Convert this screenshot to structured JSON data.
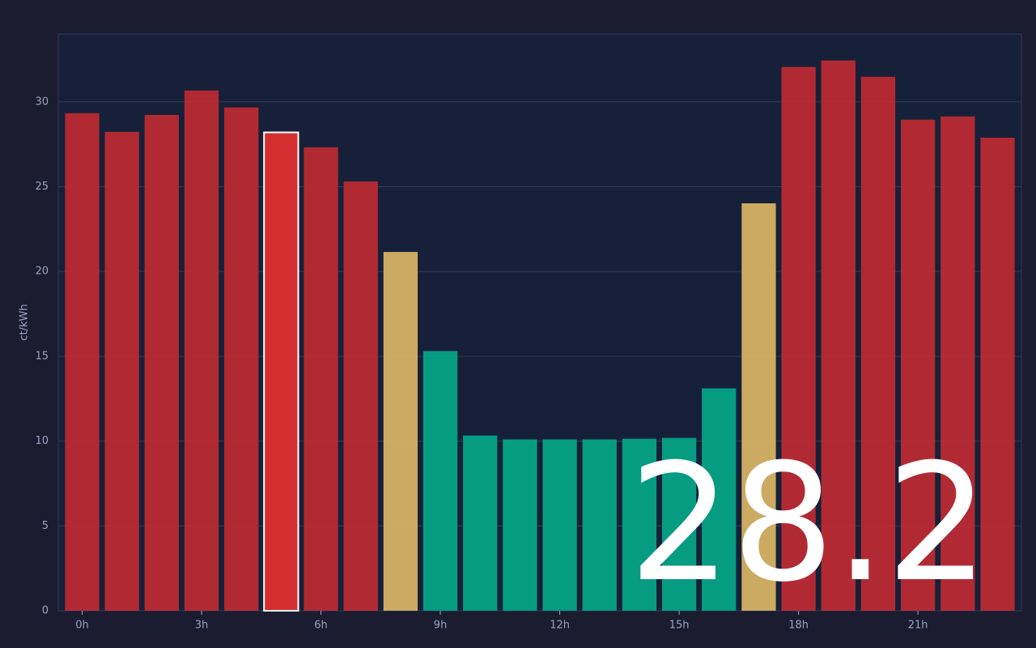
{
  "chart_data": {
    "type": "bar",
    "y_label": "ct/kWh",
    "x": [
      0,
      1,
      2,
      3,
      4,
      5,
      6,
      7,
      8,
      9,
      10,
      11,
      12,
      13,
      14,
      15,
      16,
      17,
      18,
      19,
      20,
      21,
      22,
      23
    ],
    "values": [
      29.33,
      28.23,
      29.23,
      30.67,
      29.67,
      28.2,
      27.32,
      25.31,
      21.15,
      15.31,
      10.33,
      10.1,
      10.1,
      10.1,
      10.14,
      10.19,
      13.11,
      24.02,
      32.06,
      32.44,
      31.48,
      28.95,
      29.14,
      27.89
    ],
    "colors": [
      "#b92b33",
      "#b92b33",
      "#b92b33",
      "#b92b33",
      "#b92b33",
      "#d32f2f",
      "#b92b33",
      "#b92b33",
      "#d6b264",
      "#05a386",
      "#05a386",
      "#05a386",
      "#05a386",
      "#05a386",
      "#05a386",
      "#05a386",
      "#05a386",
      "#d6b264",
      "#b92b33",
      "#b92b33",
      "#b92b33",
      "#b92b33",
      "#b92b33",
      "#b92b33"
    ],
    "highlight_index": 5,
    "current_value": 28.2,
    "xlim": [
      -0.6,
      23.6
    ],
    "ylim": [
      0,
      34
    ],
    "xticks": [
      {
        "value": 0,
        "label": "0h"
      },
      {
        "value": 3,
        "label": "3h"
      },
      {
        "value": 6,
        "label": "6h"
      },
      {
        "value": 9,
        "label": "9h"
      },
      {
        "value": 12,
        "label": "12h"
      },
      {
        "value": 15,
        "label": "15h"
      },
      {
        "value": 18,
        "label": "18h"
      },
      {
        "value": 21,
        "label": "21h"
      }
    ],
    "yticks": [
      0,
      5,
      10,
      15,
      20,
      25,
      30
    ],
    "grid": true
  }
}
